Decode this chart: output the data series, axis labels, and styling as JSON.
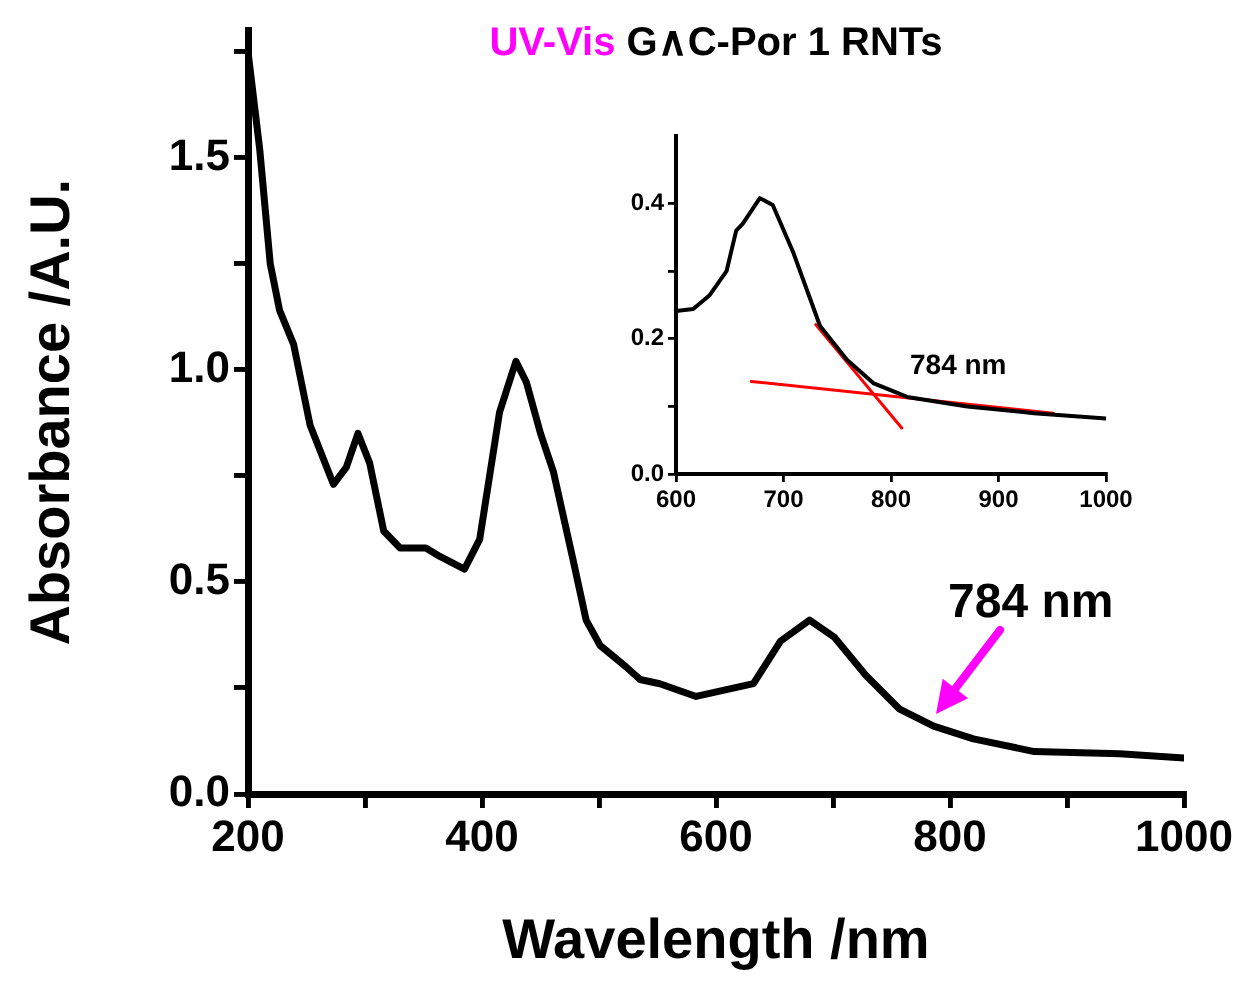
{
  "chart_data": [
    {
      "type": "line",
      "title": "UV-Vis G∧C-Por 1 RNTs",
      "xlabel": "Wavelength /nm",
      "ylabel": "Absorbance /A.U.",
      "xlim": [
        200,
        1000
      ],
      "ylim": [
        0,
        1.8
      ],
      "xticks": [
        200,
        {
          "value": 300,
          "label": null
        },
        400,
        {
          "value": 500,
          "label": null
        },
        600,
        {
          "value": 700,
          "label": null
        },
        800,
        {
          "value": 900,
          "label": null
        },
        1000
      ],
      "yticks": [
        {
          "value": 0,
          "label": "0.0"
        },
        {
          "value": 0.25,
          "label": null
        },
        {
          "value": 0.5,
          "label": "0.5"
        },
        {
          "value": 0.75,
          "label": null
        },
        {
          "value": 1,
          "label": "1.0"
        },
        {
          "value": 1.25,
          "label": null
        },
        {
          "value": 1.5,
          "label": "1.5"
        },
        {
          "value": 1.75,
          "label": null
        }
      ],
      "grid": false,
      "legend": false,
      "marker": "none",
      "series": [
        {
          "color": "#000000",
          "x": [
            200,
            210,
            219,
            227,
            239,
            253,
            273,
            284,
            294,
            304,
            316,
            330,
            352,
            364,
            385,
            398,
            415,
            429,
            438,
            450,
            461,
            478,
            489,
            501,
            523,
            535,
            552,
            583,
            632,
            655,
            680,
            701,
            728,
            757,
            786,
            820,
            872,
            945,
            1000
          ],
          "values": [
            1.75,
            1.52,
            1.25,
            1.14,
            1.06,
            0.87,
            0.73,
            0.77,
            0.85,
            0.78,
            0.62,
            0.58,
            0.58,
            0.56,
            0.53,
            0.6,
            0.9,
            1.02,
            0.97,
            0.85,
            0.76,
            0.55,
            0.41,
            0.35,
            0.3,
            0.27,
            0.26,
            0.23,
            0.26,
            0.36,
            0.41,
            0.37,
            0.28,
            0.2,
            0.16,
            0.13,
            0.1,
            0.095,
            0.085
          ]
        }
      ],
      "annotations": [
        "784 nm"
      ]
    },
    {
      "type": "line",
      "xlim": [
        600,
        1000
      ],
      "ylim": [
        0,
        0.5
      ],
      "xticks": [
        600,
        700,
        800,
        900,
        1000
      ],
      "yticks": [
        {
          "value": 0,
          "label": "0.0"
        },
        {
          "value": 0.1,
          "label": null
        },
        {
          "value": 0.2,
          "label": "0.2"
        },
        {
          "value": 0.3,
          "label": null
        },
        {
          "value": 0.4,
          "label": "0.4"
        }
      ],
      "grid": false,
      "legend": false,
      "marker": "none",
      "series": [
        {
          "color": "#000000",
          "x": [
            600,
            616,
            631,
            647,
            656,
            662,
            678,
            690,
            709,
            734,
            759,
            784,
            815,
            871,
            933,
            1000
          ],
          "values": [
            0.241,
            0.244,
            0.264,
            0.3,
            0.36,
            0.37,
            0.408,
            0.398,
            0.328,
            0.219,
            0.169,
            0.134,
            0.114,
            0.1,
            0.09,
            0.082
          ]
        },
        {
          "color": "#ff0000",
          "x": [
            730,
            810
          ],
          "values": [
            0.221,
            0.068
          ]
        },
        {
          "color": "#ff0000",
          "x": [
            670,
            951
          ],
          "values": [
            0.137,
            0.09
          ]
        }
      ],
      "annotations": [
        "784 nm"
      ]
    }
  ]
}
